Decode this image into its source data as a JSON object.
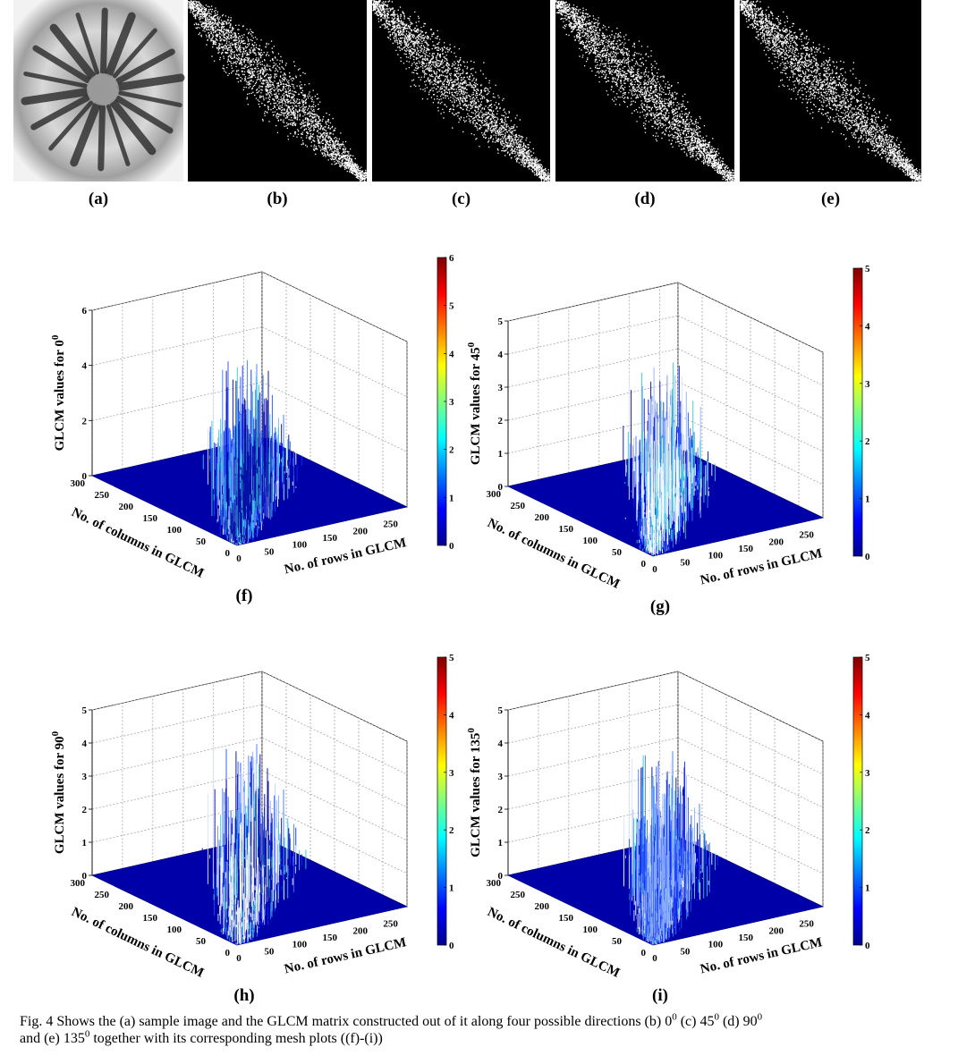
{
  "images": [
    {
      "label": "(a)"
    },
    {
      "label": "(b)"
    },
    {
      "label": "(c)"
    },
    {
      "label": "(d)"
    },
    {
      "label": "(e)"
    }
  ],
  "plots": [
    {
      "label": "(f)",
      "zlabel": "GLCM values for 0",
      "zlabel_sup": "0",
      "zticks": [
        0,
        2,
        4,
        6
      ],
      "cbar_ticks": [
        0,
        1,
        2,
        3,
        4,
        5,
        6
      ],
      "col_ticks": [
        0,
        50,
        100,
        150,
        200,
        250,
        300
      ],
      "row_ticks": [
        0,
        50,
        100,
        150,
        200,
        250
      ],
      "col_label": "No. of columns in GLCM",
      "row_label": "No. of rows in GLCM"
    },
    {
      "label": "(g)",
      "zlabel": "GLCM values for 45",
      "zlabel_sup": "0",
      "zticks": [
        0,
        1,
        2,
        3,
        4,
        5
      ],
      "cbar_ticks": [
        0,
        1,
        2,
        3,
        4,
        5
      ],
      "col_ticks": [
        0,
        50,
        100,
        150,
        200,
        250,
        300
      ],
      "row_ticks": [
        0,
        50,
        100,
        150,
        200,
        250
      ],
      "col_label": "No. of columns in GLCM",
      "row_label": "No. of rows in GLCM"
    },
    {
      "label": "(h)",
      "zlabel": "GLCM values for 90",
      "zlabel_sup": "0",
      "zticks": [
        0,
        1,
        2,
        3,
        4,
        5
      ],
      "cbar_ticks": [
        0,
        1,
        2,
        3,
        4,
        5
      ],
      "col_ticks": [
        0,
        50,
        100,
        150,
        200,
        250,
        300
      ],
      "row_ticks": [
        0,
        50,
        100,
        150,
        200,
        250
      ],
      "col_label": "No. of columns in GLCM",
      "row_label": "No. of rows in GLCM"
    },
    {
      "label": "(i)",
      "zlabel": "GLCM values for 135",
      "zlabel_sup": "0",
      "zticks": [
        0,
        1,
        2,
        3,
        4,
        5
      ],
      "cbar_ticks": [
        0,
        1,
        2,
        3,
        4,
        5
      ],
      "col_ticks": [
        0,
        50,
        100,
        150,
        200,
        250,
        300
      ],
      "row_ticks": [
        0,
        50,
        100,
        150,
        200,
        250
      ],
      "col_label": "No. of columns in GLCM",
      "row_label": "No. of rows in GLCM"
    }
  ],
  "caption": [
    "Fig. 4 Shows the (a) sample image and the GLCM matrix constructed out of it along four possible directions (b) 0",
    "0",
    " (c) 45",
    "0",
    " (d) 90",
    "0",
    "and (e) 135",
    "0",
    " together with its corresponding mesh plots ((f)-(i))"
  ]
}
